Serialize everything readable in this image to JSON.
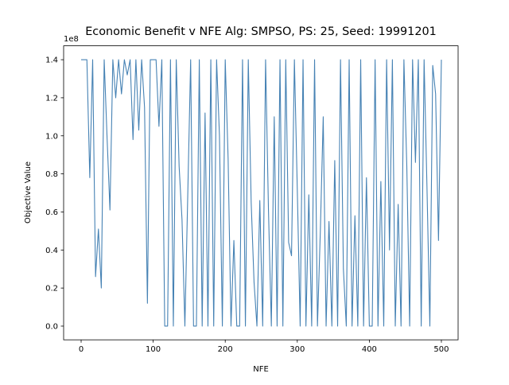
{
  "chart_data": {
    "type": "line",
    "title": "Economic Benefit v NFE Alg: SMPSO, PS: 25, Seed: 19991201",
    "x_label": "NFE",
    "y_label": "Objective Value",
    "y_offset_label": "1e8",
    "xlim": [
      -24.3,
      523.2
    ],
    "ylim": [
      -0.072,
      1.473
    ],
    "xticks": [
      0,
      100,
      200,
      300,
      400,
      500
    ],
    "yticks": [
      {
        "value": 0,
        "label": "0.0"
      },
      0.2,
      0.4,
      0.6,
      0.8,
      {
        "value": 1,
        "label": "1.0"
      },
      1.2,
      1.4
    ],
    "x": [
      0,
      4,
      8,
      12,
      16,
      20,
      24,
      28,
      32,
      36,
      40,
      44,
      48,
      52,
      56,
      60,
      64,
      68,
      72,
      76,
      80,
      84,
      88,
      92,
      96,
      100,
      104,
      108,
      112,
      116,
      120,
      124,
      128,
      132,
      136,
      140,
      144,
      148,
      152,
      156,
      160,
      164,
      168,
      172,
      176,
      180,
      184,
      188,
      192,
      196,
      200,
      204,
      208,
      212,
      216,
      220,
      224,
      228,
      232,
      236,
      240,
      244,
      248,
      252,
      256,
      260,
      264,
      268,
      272,
      276,
      280,
      284,
      288,
      292,
      296,
      300,
      304,
      308,
      312,
      316,
      320,
      324,
      328,
      332,
      336,
      340,
      344,
      348,
      352,
      356,
      360,
      364,
      368,
      372,
      376,
      380,
      384,
      388,
      392,
      396,
      400,
      404,
      408,
      412,
      416,
      420,
      424,
      428,
      432,
      436,
      440,
      444,
      448,
      452,
      456,
      460,
      464,
      468,
      472,
      476,
      480,
      484,
      488,
      492,
      496,
      500
    ],
    "series": [
      {
        "color": "#4682b4",
        "values": [
          1.4,
          1.4,
          1.4,
          0.78,
          1.4,
          0.26,
          0.51,
          0.2,
          1.4,
          0.99,
          0.61,
          1.4,
          1.2,
          1.4,
          1.22,
          1.4,
          1.32,
          1.4,
          0.98,
          1.4,
          1.03,
          1.4,
          1.15,
          0.12,
          1.4,
          1.4,
          1.4,
          1.05,
          1.4,
          0,
          0,
          1.4,
          0,
          1.4,
          0.84,
          0.56,
          0,
          0.69,
          1.4,
          0,
          0,
          1.4,
          0,
          1.12,
          0,
          1.4,
          0,
          1.4,
          1.0,
          0,
          1.4,
          0.88,
          0,
          0.45,
          0,
          0,
          1.4,
          0,
          1.4,
          0.65,
          0.23,
          0,
          0.66,
          0,
          1.4,
          0.61,
          0,
          1.1,
          0,
          1.4,
          0,
          1.4,
          0.44,
          0.37,
          1.4,
          0.72,
          0,
          1.4,
          0,
          0.69,
          0,
          1.4,
          0,
          0.5,
          1.1,
          0,
          0.55,
          0,
          0.87,
          0,
          1.4,
          0.3,
          0,
          1.4,
          0,
          0.58,
          0,
          1.4,
          0,
          0.78,
          0,
          0,
          1.4,
          0,
          0.76,
          0,
          1.4,
          0.4,
          1.4,
          0,
          0.64,
          0,
          1.4,
          0.84,
          0,
          1.4,
          0.86,
          1.4,
          0,
          1.4,
          0.73,
          0,
          1.37,
          1.22,
          0.45,
          1.4
        ]
      }
    ]
  }
}
